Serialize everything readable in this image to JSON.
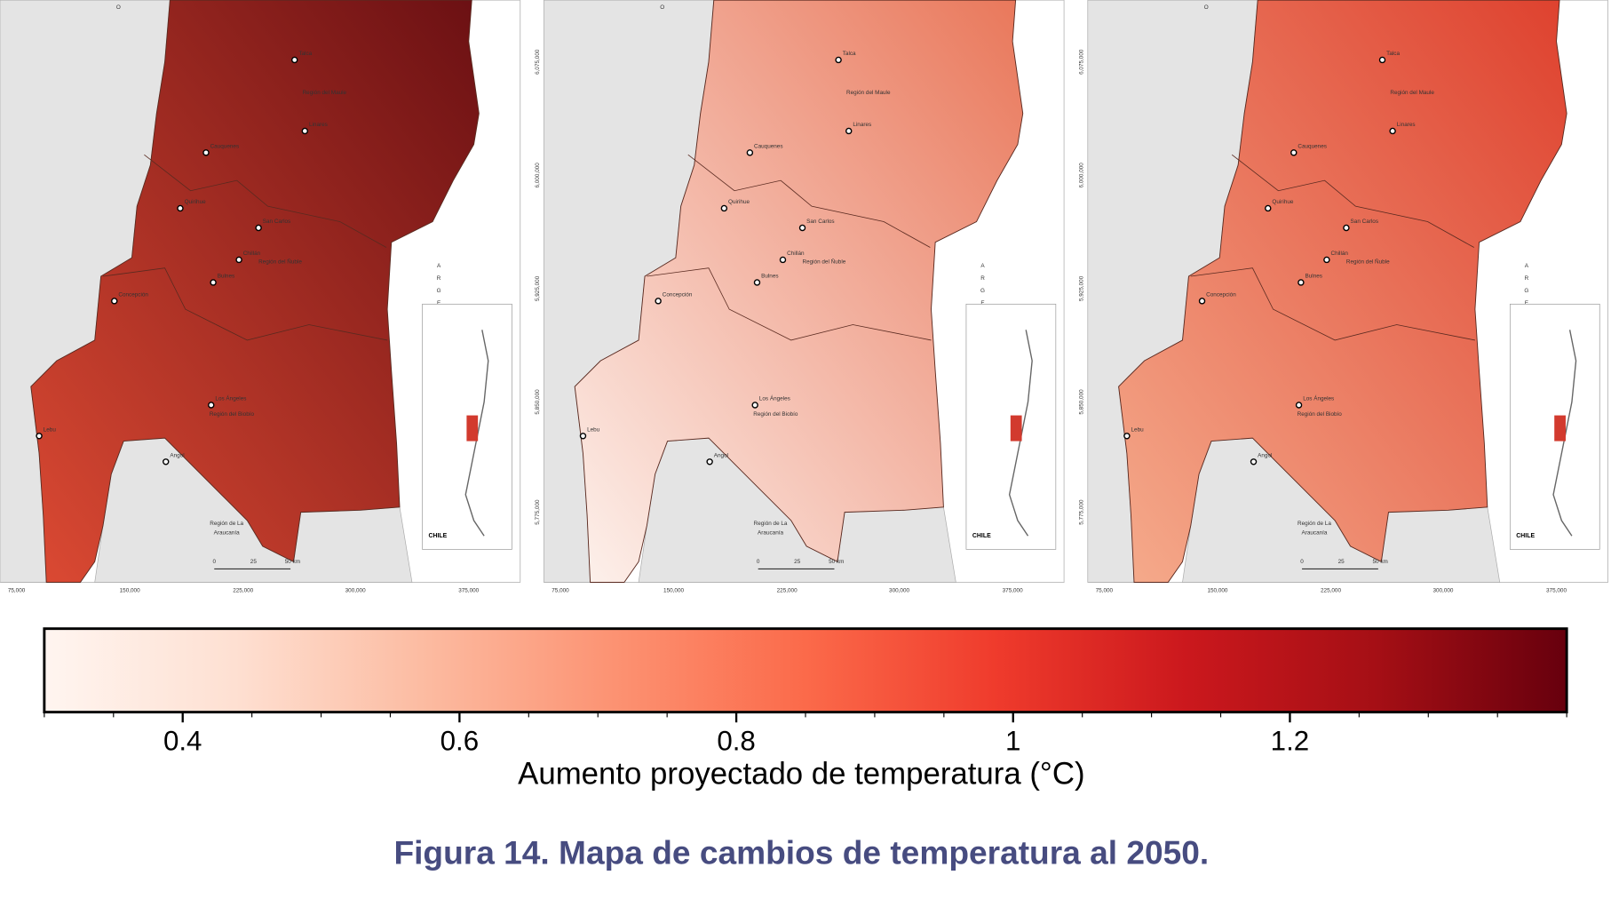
{
  "maps": {
    "compass_letter": "O",
    "panels": [
      {
        "gradient": [
          "#dc4a33",
          "#6b1013"
        ]
      },
      {
        "gradient": [
          "#fdf2ed",
          "#e9775a"
        ]
      },
      {
        "gradient": [
          "#f5ab8c",
          "#de412e"
        ]
      }
    ],
    "cities": [
      "Talca",
      "Linares",
      "Cauquenes",
      "Quirihue",
      "San Carlos",
      "Chillán",
      "Bulnes",
      "Concepción",
      "Los Ángeles",
      "Lebu",
      "Angol"
    ],
    "regions": [
      "Región del Maule",
      "Región del Ñuble",
      "Región del Biobío",
      "Región de La",
      "Araucanía"
    ],
    "country_letters": [
      "A",
      "R",
      "G",
      "E"
    ],
    "inset_label": "CHILE",
    "scale_bar": [
      "0",
      "25",
      "50 km"
    ],
    "x_axis_labels": [
      "75,000",
      "150,000",
      "225,000",
      "300,000",
      "375,000"
    ],
    "y_axis_labels": [
      "6,075,000",
      "6,000,000",
      "5,925,000",
      "5,850,000",
      "5,775,000"
    ]
  },
  "colorbar": {
    "label": "Aumento proyectado de temperatura (°C)",
    "clim": [
      0.3,
      1.4
    ],
    "ticks": [
      0.4,
      0.6,
      0.8,
      1,
      1.2
    ],
    "colors": [
      "#fff5f0",
      "#fee0d2",
      "#fcbba1",
      "#fc9272",
      "#fb6a4a",
      "#ef3b2c",
      "#cb181d",
      "#a50f15",
      "#67000d"
    ]
  },
  "caption": "Figura 14. Mapa de cambios de temperatura al 2050."
}
